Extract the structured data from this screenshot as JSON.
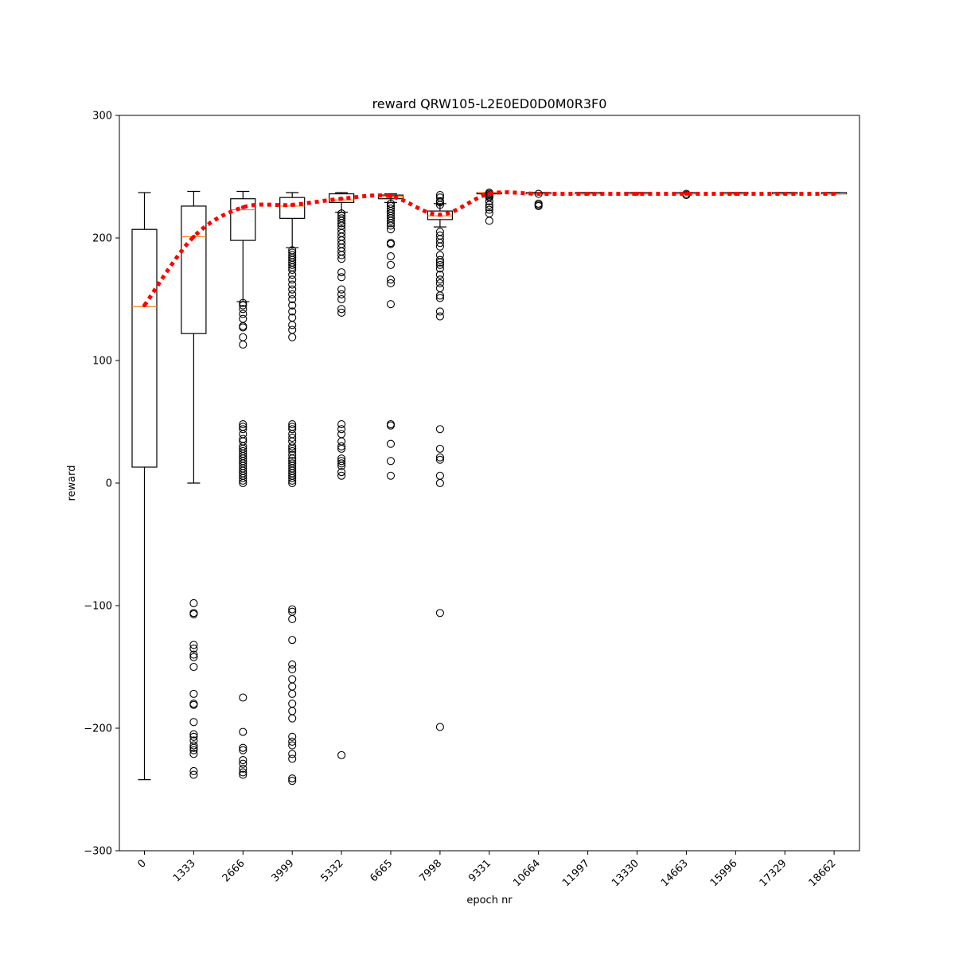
{
  "chart_data": {
    "type": "box",
    "title": "reward QRW105-L2E0ED0D0M0R3F0",
    "xlabel": "epoch nr",
    "ylabel": "reward",
    "ylim": [
      -300,
      300
    ],
    "yticks": [
      -300,
      -200,
      -100,
      0,
      100,
      200,
      300
    ],
    "ytick_labels": [
      "−300",
      "−200",
      "−100",
      "0",
      "100",
      "200",
      "300"
    ],
    "categories": [
      "0",
      "1333",
      "2666",
      "3999",
      "5332",
      "6665",
      "7998",
      "9331",
      "10664",
      "11997",
      "13330",
      "14663",
      "15996",
      "17329",
      "18662"
    ],
    "boxes": [
      {
        "whislo": -242,
        "q1": 13,
        "med": 144,
        "q3": 207,
        "whishi": 237,
        "fliers": []
      },
      {
        "whislo": 0,
        "q1": 122,
        "med": 201,
        "q3": 226,
        "whishi": 238,
        "fliers": [
          -98,
          -106,
          -107,
          -132,
          -135,
          -140,
          -142,
          -150,
          -172,
          -180,
          -181,
          -195,
          -205,
          -207,
          -210,
          -214,
          -216,
          -218,
          -221,
          -235,
          -238
        ]
      },
      {
        "whislo": 148,
        "q1": 198,
        "med": 223,
        "q3": 232,
        "whishi": 238,
        "fliers": [
          147,
          145,
          142,
          138,
          134,
          128,
          127,
          119,
          113,
          48,
          46,
          44,
          40,
          36,
          34,
          30,
          28,
          26,
          24,
          22,
          20,
          18,
          16,
          14,
          12,
          10,
          8,
          6,
          4,
          2,
          0,
          -175,
          -203,
          -216,
          -218,
          -226,
          -229,
          -233,
          -236,
          -238
        ]
      },
      {
        "whislo": 192,
        "q1": 216,
        "med": 226,
        "q3": 233,
        "whishi": 237,
        "fliers": [
          190,
          188,
          186,
          184,
          182,
          180,
          178,
          176,
          174,
          170,
          166,
          162,
          158,
          154,
          150,
          145,
          140,
          135,
          129,
          125,
          119,
          48,
          46,
          44,
          40,
          37,
          34,
          30,
          28,
          26,
          23,
          20,
          18,
          16,
          14,
          12,
          10,
          8,
          6,
          4,
          2,
          0,
          -103,
          -105,
          -111,
          -128,
          -148,
          -152,
          -160,
          -166,
          -172,
          -180,
          -186,
          -192,
          -207,
          -211,
          -214,
          -221,
          -225,
          -241,
          -243
        ]
      },
      {
        "whislo": 221,
        "q1": 229,
        "med": 231,
        "q3": 236,
        "whishi": 237,
        "fliers": [
          220,
          218,
          216,
          214,
          212,
          210,
          207,
          204,
          201,
          198,
          195,
          192,
          189,
          186,
          183,
          172,
          168,
          158,
          154,
          150,
          142,
          139,
          48,
          44,
          40,
          34,
          30,
          28,
          20,
          18,
          16,
          14,
          9,
          6,
          -222
        ]
      },
      {
        "whislo": 229,
        "q1": 232,
        "med": 234,
        "q3": 235,
        "whishi": 236,
        "fliers": [
          228,
          226,
          224,
          222,
          220,
          218,
          216,
          214,
          212,
          210,
          207,
          196,
          195,
          185,
          178,
          166,
          163,
          146,
          48,
          47,
          32,
          18,
          6
        ]
      },
      {
        "whislo": 209,
        "q1": 215,
        "med": 218,
        "q3": 222,
        "whishi": 228,
        "fliers": [
          235,
          233,
          230,
          229,
          227,
          205,
          202,
          199,
          196,
          193,
          186,
          182,
          180,
          178,
          175,
          170,
          166,
          163,
          159,
          153,
          151,
          140,
          136,
          44,
          28,
          21,
          19,
          6,
          0,
          -106,
          -199
        ]
      },
      {
        "whislo": 236,
        "q1": 236,
        "med": 237,
        "q3": 237,
        "whishi": 237,
        "fliers": [
          237,
          236,
          235,
          234,
          233,
          230,
          227,
          225,
          223,
          220,
          214
        ]
      },
      {
        "whislo": 236,
        "q1": 236,
        "med": 236,
        "q3": 237,
        "whishi": 237,
        "fliers": [
          236,
          228,
          227,
          226
        ]
      },
      {
        "whislo": 236,
        "q1": 236,
        "med": 236,
        "q3": 237,
        "whishi": 237,
        "fliers": []
      },
      {
        "whislo": 236,
        "q1": 236,
        "med": 236,
        "q3": 237,
        "whishi": 237,
        "fliers": []
      },
      {
        "whislo": 236,
        "q1": 236,
        "med": 236,
        "q3": 237,
        "whishi": 237,
        "fliers": [
          235,
          236
        ]
      },
      {
        "whislo": 236,
        "q1": 236,
        "med": 236,
        "q3": 237,
        "whishi": 237,
        "fliers": []
      },
      {
        "whislo": 236,
        "q1": 236,
        "med": 236,
        "q3": 237,
        "whishi": 237,
        "fliers": []
      },
      {
        "whislo": 236,
        "q1": 236,
        "med": 236,
        "q3": 237,
        "whishi": 237,
        "fliers": []
      }
    ],
    "mean_line": [
      145,
      201,
      225,
      227,
      232,
      234,
      219,
      236,
      236,
      236,
      236,
      236,
      236,
      236,
      236
    ],
    "colors": {
      "box": "#000000",
      "median": "#ff7f0e",
      "mean_line": "#ff0000"
    },
    "grid": false,
    "x_tick_rotation": 45
  }
}
